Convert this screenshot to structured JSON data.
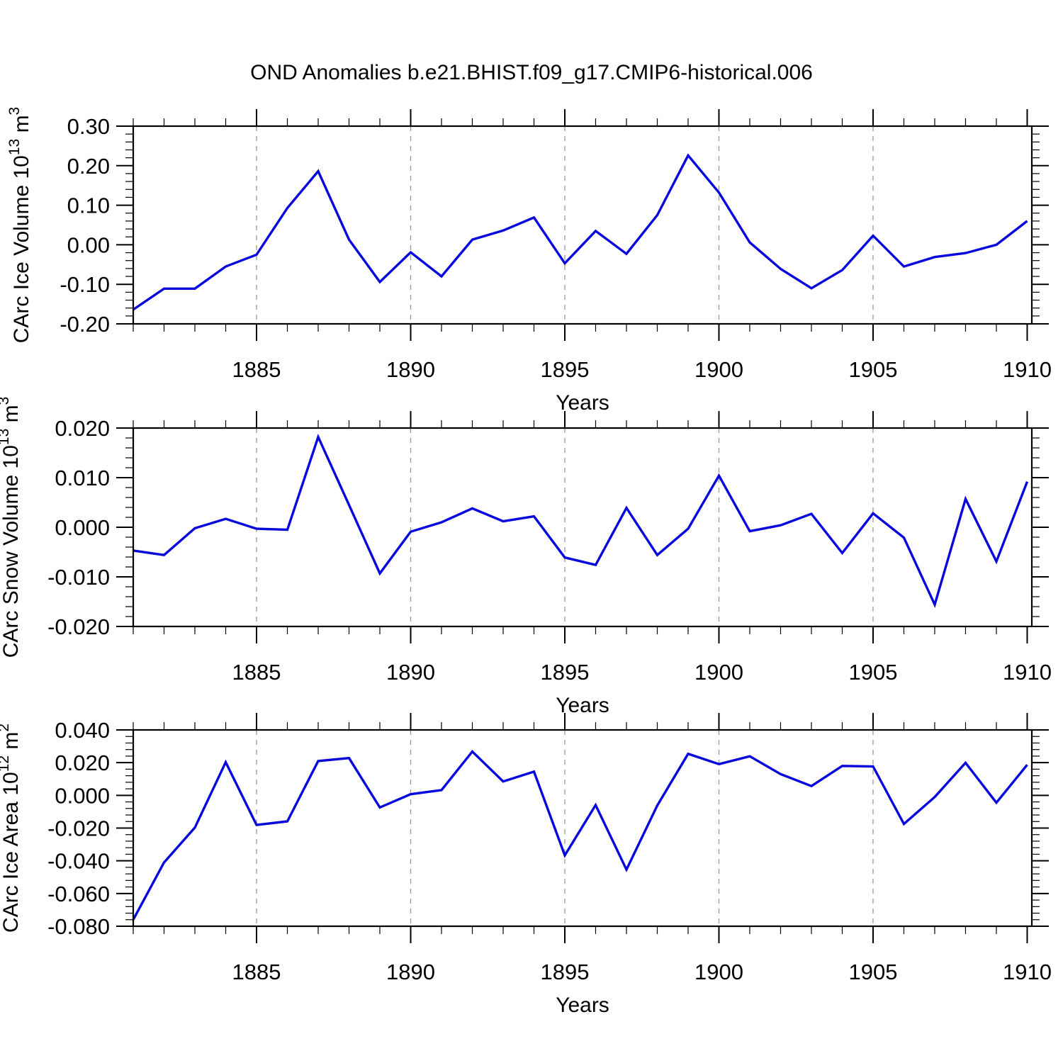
{
  "title": "OND Anomalies b.e21.BHIST.f09_g17.CMIP6-historical.006",
  "line_color": "#0707dd",
  "grid_color": "#9a9a9a",
  "axis_color": "#000000",
  "chart_data": [
    {
      "type": "line",
      "name": "ice-volume",
      "ylabel": "CArc Ice Volume 10^13 m^3",
      "ylabel_parts": [
        [
          "CArc Ice Volume 10",
          0
        ],
        [
          "13",
          1
        ],
        [
          " m",
          0
        ],
        [
          "3",
          1
        ]
      ],
      "xlabel": "Years",
      "ylim": [
        -0.2,
        0.3
      ],
      "ytick_major": 0.1,
      "ytick_minor": 0.02,
      "ytick_decimals": 2,
      "xlim": [
        1881,
        1910.15
      ],
      "xticks_labeled": [
        1885,
        1890,
        1895,
        1900,
        1905,
        1910
      ],
      "grid_years": [
        1885,
        1890,
        1895,
        1900,
        1905
      ],
      "years": [
        1881,
        1882,
        1883,
        1884,
        1885,
        1886,
        1887,
        1888,
        1889,
        1890,
        1891,
        1892,
        1893,
        1894,
        1895,
        1896,
        1897,
        1898,
        1899,
        1900,
        1901,
        1902,
        1903,
        1904,
        1905,
        1906,
        1907,
        1908,
        1909,
        1910
      ],
      "values": [
        -0.164,
        -0.111,
        -0.111,
        -0.055,
        -0.025,
        0.093,
        0.186,
        0.013,
        -0.094,
        -0.019,
        -0.08,
        0.013,
        0.036,
        0.069,
        -0.047,
        0.035,
        -0.023,
        0.075,
        0.226,
        0.132,
        0.006,
        -0.061,
        -0.11,
        -0.064,
        0.023,
        -0.055,
        -0.031,
        -0.021,
        0.0,
        0.06
      ]
    },
    {
      "type": "line",
      "name": "snow-volume",
      "ylabel": "CArc Snow Volume 10^13 m^3",
      "ylabel_parts": [
        [
          "CArc Snow Volume 10",
          0
        ],
        [
          "13",
          1
        ],
        [
          " m",
          0
        ],
        [
          "3",
          1
        ]
      ],
      "xlabel": "Years",
      "ylim": [
        -0.02,
        0.02
      ],
      "ytick_major": 0.01,
      "ytick_minor": 0.002,
      "ytick_decimals": 3,
      "xlim": [
        1881,
        1910.15
      ],
      "xticks_labeled": [
        1885,
        1890,
        1895,
        1900,
        1905,
        1910
      ],
      "grid_years": [
        1885,
        1890,
        1895,
        1900,
        1905
      ],
      "years": [
        1881,
        1882,
        1883,
        1884,
        1885,
        1886,
        1887,
        1888,
        1889,
        1890,
        1891,
        1892,
        1893,
        1894,
        1895,
        1896,
        1897,
        1898,
        1899,
        1900,
        1901,
        1902,
        1903,
        1904,
        1905,
        1906,
        1907,
        1908,
        1909,
        1910
      ],
      "values": [
        -0.0047,
        -0.0056,
        -0.0002,
        0.0017,
        -0.0003,
        -0.0005,
        0.0182,
        0.0045,
        -0.0093,
        -0.0009,
        0.001,
        0.0038,
        0.0012,
        0.0022,
        -0.0061,
        -0.0076,
        0.0039,
        -0.0056,
        -0.0003,
        0.0104,
        -0.0008,
        0.0004,
        0.0027,
        -0.0052,
        0.0028,
        -0.0021,
        -0.0156,
        0.0057,
        -0.0069,
        0.0092
      ]
    },
    {
      "type": "line",
      "name": "ice-area",
      "ylabel": "CArc Ice Area 10^12 m^2",
      "ylabel_parts": [
        [
          "CArc Ice Area 10",
          0
        ],
        [
          "12",
          1
        ],
        [
          " m",
          0
        ],
        [
          "2",
          1
        ]
      ],
      "xlabel": "Years",
      "ylim": [
        -0.08,
        0.04
      ],
      "ytick_major": 0.02,
      "ytick_minor": 0.004,
      "ytick_decimals": 3,
      "xlim": [
        1881,
        1910.15
      ],
      "xticks_labeled": [
        1885,
        1890,
        1895,
        1900,
        1905,
        1910
      ],
      "grid_years": [
        1885,
        1890,
        1895,
        1900,
        1905
      ],
      "years": [
        1881,
        1882,
        1883,
        1884,
        1885,
        1886,
        1887,
        1888,
        1889,
        1890,
        1891,
        1892,
        1893,
        1894,
        1895,
        1896,
        1897,
        1898,
        1899,
        1900,
        1901,
        1902,
        1903,
        1904,
        1905,
        1906,
        1907,
        1908,
        1909,
        1910
      ],
      "values": [
        -0.076,
        -0.041,
        -0.0197,
        0.0203,
        -0.0181,
        -0.0159,
        0.021,
        0.0228,
        -0.0074,
        0.0007,
        0.0032,
        0.0268,
        0.0085,
        0.0145,
        -0.0367,
        -0.0059,
        -0.0454,
        -0.0062,
        0.0254,
        0.0191,
        0.0239,
        0.013,
        0.0057,
        0.018,
        0.0177,
        -0.0175,
        -0.001,
        0.0199,
        -0.0045,
        0.0187
      ]
    }
  ]
}
